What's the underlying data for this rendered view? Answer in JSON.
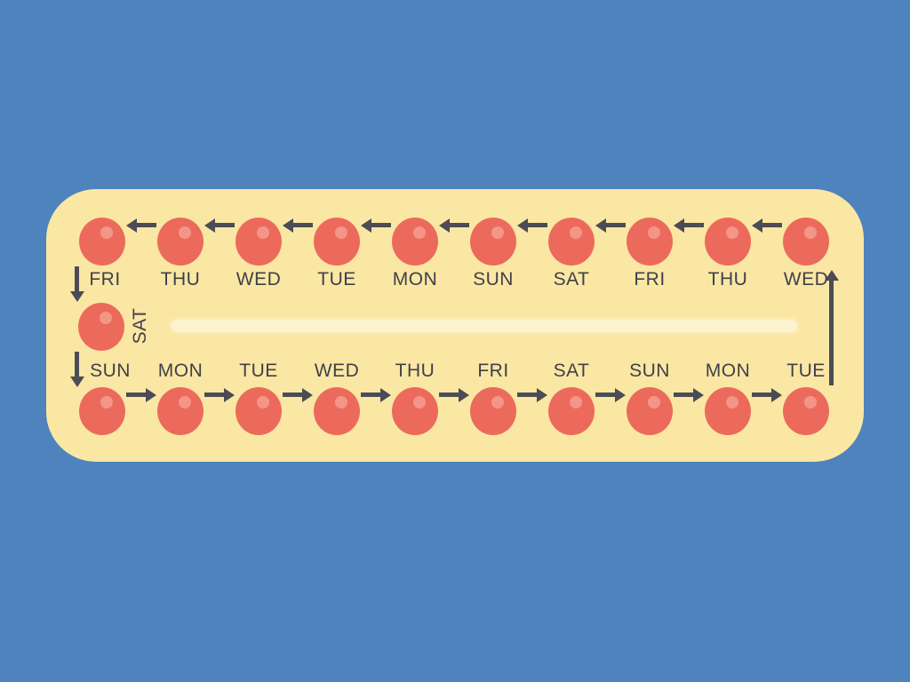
{
  "illustration": {
    "description": "pill-pack-schedule",
    "top_row": {
      "days": [
        "FRI",
        "THU",
        "WED",
        "TUE",
        "MON",
        "SUN",
        "SAT",
        "FRI",
        "THU",
        "WED"
      ],
      "arrow_direction": "left"
    },
    "middle": {
      "day": "SAT",
      "empty_slot": true
    },
    "bottom_row": {
      "days": [
        "SUN",
        "MON",
        "TUE",
        "WED",
        "THU",
        "FRI",
        "SAT",
        "SUN",
        "MON",
        "TUE"
      ],
      "arrow_direction": "right"
    },
    "connectors": [
      "down-left-top",
      "down-left-middle",
      "up-right"
    ]
  },
  "colors": {
    "background": "#4e83bd",
    "pack": "#fbe7a4",
    "slot_bar": "#fdf4cf",
    "pill": "#ec6a5c",
    "pill_highlight": "#f49588",
    "arrow": "#4b4c55",
    "label_text": "#3f4149"
  }
}
